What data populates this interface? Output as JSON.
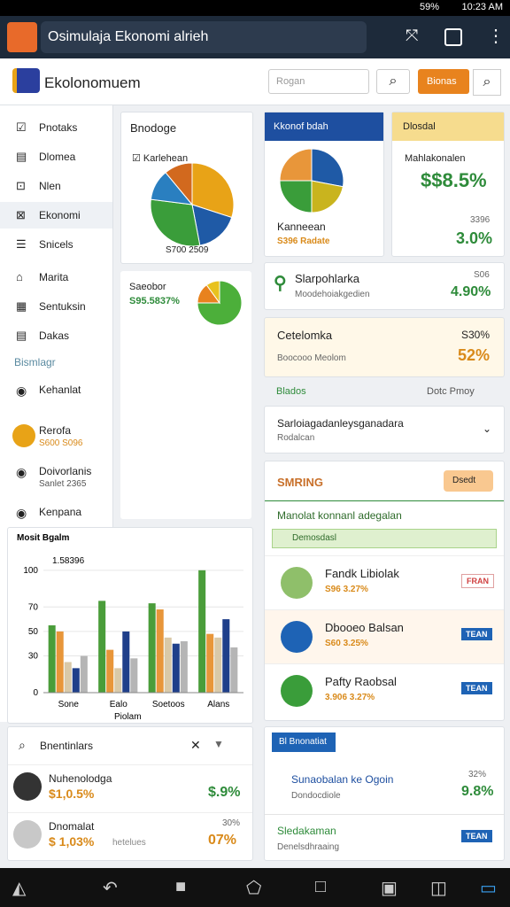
{
  "status_bar": {
    "battery": "59%",
    "time": "10:23 AM"
  },
  "app_bar": {
    "title": "Osimulaja Ekonomi alrieh"
  },
  "header": {
    "brand": "Ekolonomuem",
    "search_placeholder": "Rogan",
    "button": "Bionas"
  },
  "sidebar": {
    "items": [
      "Pnotaks",
      "Dlomea",
      "Nlen",
      "Ekonomi",
      "Snicels",
      "Marita",
      "Sentuksin",
      "Dakas"
    ],
    "section": "Bismlagr",
    "entries": [
      {
        "label": "Kehanlat"
      },
      {
        "label": "Rerofa",
        "sub": "S600 S096"
      },
      {
        "label": "Doivorlanis",
        "sub": "Sanlet 2365"
      },
      {
        "label": "Kenpana"
      }
    ]
  },
  "budget_card": {
    "title": "Bnodoge",
    "legend": "Karlehean",
    "footer": "S700 2509",
    "pie": {
      "values": [
        30,
        17,
        30,
        12,
        11
      ],
      "colors": [
        "#e8a317",
        "#1f5aa6",
        "#3a9d3a",
        "#2a7fc0",
        "#d2691e"
      ]
    }
  },
  "small_card": {
    "title": "Saeobor",
    "value": "S95.5837%",
    "pie": {
      "values": [
        75,
        15,
        10
      ],
      "colors": [
        "#4caf3a",
        "#e8821e",
        "#e8c21e"
      ]
    }
  },
  "bar_chart": {
    "type": "bar",
    "title": "Mosit Bgalm",
    "annotation": "1.58396",
    "x_title": "Piolam",
    "categories": [
      "Sone",
      "Ealo",
      "Soetoos",
      "Alans"
    ],
    "series": [
      {
        "color": "#4a9d3a",
        "values": [
          55,
          75,
          73,
          100
        ]
      },
      {
        "color": "#e8963a",
        "values": [
          50,
          35,
          68,
          48
        ]
      },
      {
        "color": "#d9c9a8",
        "values": [
          25,
          20,
          45,
          45
        ]
      },
      {
        "color": "#1f3f8a",
        "values": [
          20,
          50,
          40,
          60
        ]
      },
      {
        "color": "#b5b5b5",
        "values": [
          30,
          28,
          42,
          37
        ]
      }
    ],
    "ylim": [
      0,
      110
    ],
    "yticks": [
      0,
      30,
      50,
      70,
      100
    ]
  },
  "right_pie_card": {
    "title": "Kkonof bdah",
    "label": "Kanneean",
    "sub": "S396 Radate",
    "pie": {
      "values": [
        28,
        22,
        25,
        25
      ],
      "colors": [
        "#1f5aa6",
        "#c9b41e",
        "#3a9d3a",
        "#e8963a"
      ]
    }
  },
  "dividend_card": {
    "title": "Dlosdal",
    "label": "Mahlakonalen",
    "value": "$$8.5%",
    "sub_value": "3396",
    "percent": "3.0%"
  },
  "stat_card": {
    "title": "Slarpohlarka",
    "sub": "Moodehoiakgedien",
    "small": "S06",
    "value": "4.90%"
  },
  "alert_card": {
    "title": "Cetelomka",
    "sub": "Boocooo Meolom",
    "value": "S30%",
    "percent": "52%"
  },
  "filter_row": {
    "left": "Blados",
    "right": "Dotc Pmoy"
  },
  "dropdown": {
    "title": "Sarloiagadanleysganadara",
    "sub": "Rodalcan"
  },
  "ranking": {
    "title": "SMRING",
    "button": "Dsedt",
    "subtitle": "Manolat konnanl adegalan",
    "bar": "Demosdasl",
    "people": [
      {
        "name": "Fandk Libiolak",
        "stat": "S96 3.27%",
        "tag": "FRAN"
      },
      {
        "name": "Dbooeo Balsan",
        "stat": "S60 3.25%",
        "tag": "TEAN"
      },
      {
        "name": "Pafty Raobsal",
        "stat": "3.906 3.27%",
        "tag": "TEAN"
      }
    ]
  },
  "bottom_left": {
    "search": "Bnentinlars",
    "people": [
      {
        "name": "Nuhenolodga",
        "stat": "$1,0.5%",
        "value": "$.9%"
      },
      {
        "name": "Dnomalat",
        "stat": "$ 1,03%",
        "note": "hetelues",
        "small": "30%",
        "value": "07%"
      }
    ]
  },
  "bottom_right": {
    "button": "Bl Bnonatiat",
    "item1": "Sunaobalan ke Ogoin",
    "item1_sub": "Dondocdiole",
    "item1_small": "32%",
    "item1_value": "9.8%",
    "item2": "Sledakaman",
    "item2_sub": "Denelsdhraaing",
    "item2_tag": "TEAN"
  }
}
